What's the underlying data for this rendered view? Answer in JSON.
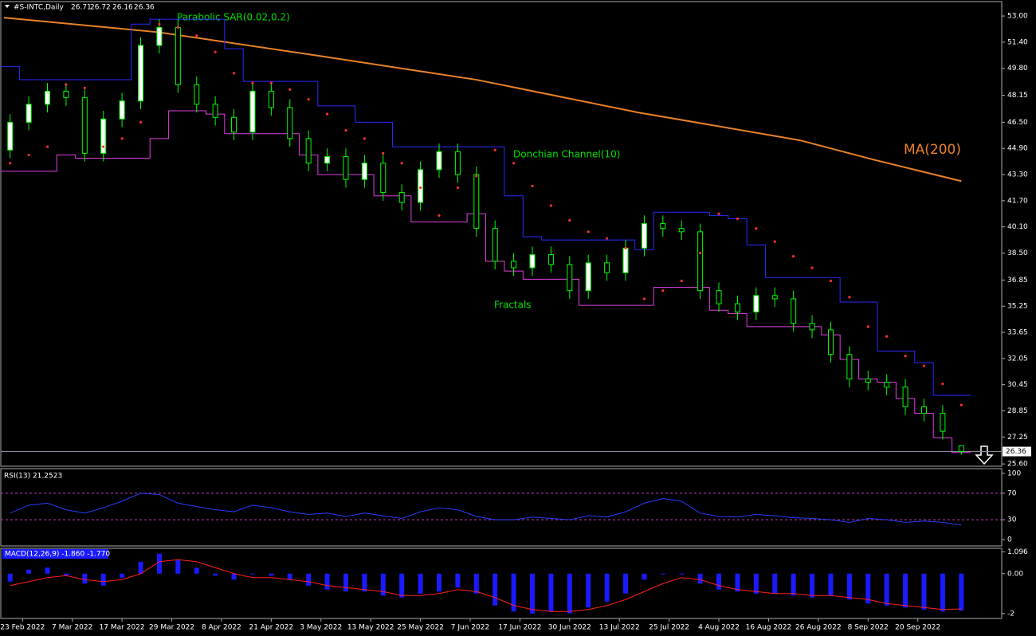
{
  "chart_data": {
    "type": "candlestick",
    "header": "#S-INTC,Daily",
    "header_ohlc": [
      26.71,
      26.72,
      26.16,
      26.36
    ],
    "last_price": 26.36,
    "annotations": [
      "Parabolic SAR(0.02,0.2)",
      "Donchian Channel(10)",
      "Fractals",
      "MA(200)"
    ],
    "x": [
      1,
      4,
      7,
      10,
      13,
      16,
      19,
      22,
      25,
      28,
      31,
      34,
      37,
      40,
      43,
      46,
      49,
      52,
      55,
      58,
      61,
      64,
      67,
      70,
      73,
      76,
      79,
      82,
      85,
      88,
      91,
      94,
      97,
      100,
      103,
      106,
      109,
      112,
      115,
      118,
      121,
      124,
      127,
      130,
      133,
      136,
      139,
      142,
      145,
      148,
      151,
      154
    ],
    "xlim": [
      -0.5,
      160.5
    ],
    "xticks": [
      {
        "value": 3,
        "label": "23 Feb 2022"
      },
      {
        "value": 11,
        "label": "7 Mar 2022"
      },
      {
        "value": 19,
        "label": "17 Mar 2022"
      },
      {
        "value": 27,
        "label": "29 Mar 2022"
      },
      {
        "value": 35,
        "label": "8 Apr 2022"
      },
      {
        "value": 43,
        "label": "21 Apr 2022"
      },
      {
        "value": 51,
        "label": "3 May 2022"
      },
      {
        "value": 59,
        "label": "13 May 2022"
      },
      {
        "value": 67,
        "label": "25 May 2022"
      },
      {
        "value": 75,
        "label": "7 Jun 2022"
      },
      {
        "value": 83,
        "label": "17 Jun 2022"
      },
      {
        "value": 91,
        "label": "30 Jun 2022"
      },
      {
        "value": 99,
        "label": "13 Jul 2022"
      },
      {
        "value": 107,
        "label": "25 Jul 2022"
      },
      {
        "value": 115,
        "label": "4 Aug 2022"
      },
      {
        "value": 123,
        "label": "16 Aug 2022"
      },
      {
        "value": 131,
        "label": "26 Aug 2022"
      },
      {
        "value": 139,
        "label": "8 Sep 2022"
      },
      {
        "value": 147,
        "label": "20 Sep 2022"
      }
    ],
    "ylim": [
      25.46,
      53.88
    ],
    "yticks": [
      {
        "value": 53,
        "label": "53.00"
      },
      {
        "value": 51.4,
        "label": "51.40"
      },
      {
        "value": 49.8,
        "label": "49.80"
      },
      {
        "value": 48.15,
        "label": "48.15"
      },
      {
        "value": 46.5,
        "label": "46.50"
      },
      {
        "value": 44.9,
        "label": "44.90"
      },
      {
        "value": 43.3,
        "label": "43.30"
      },
      {
        "value": 41.7,
        "label": "41.70"
      },
      {
        "value": 40.1,
        "label": "40.10"
      },
      {
        "value": 38.5,
        "label": "38.50"
      },
      {
        "value": 36.85,
        "label": "36.85"
      },
      {
        "value": 35.25,
        "label": "35.25"
      },
      {
        "value": 33.65,
        "label": "33.65"
      },
      {
        "value": 32.05,
        "label": "32.05"
      },
      {
        "value": 30.45,
        "label": "30.45"
      },
      {
        "value": 28.85,
        "label": "28.85"
      },
      {
        "value": 27.25,
        "label": "27.25"
      },
      {
        "value": 25.6,
        "label": "25.60"
      }
    ],
    "candle_color": "#00ff00",
    "up_fill": "#ffffff",
    "down_fill": "#000000",
    "open": [
      44.8,
      46.5,
      47.6,
      48.4,
      48.0,
      44.6,
      46.7,
      47.8,
      51.2,
      52.3,
      48.8,
      47.6,
      46.8,
      45.9,
      48.4,
      47.4,
      45.5,
      44.0,
      44.4,
      43.0,
      44.0,
      42.2,
      41.6,
      43.6,
      44.7,
      43.3,
      40.0,
      38.0,
      37.6,
      38.4,
      37.8,
      36.2,
      37.9,
      37.3,
      38.8,
      40.3,
      40.0,
      39.8,
      36.2,
      35.4,
      34.9,
      35.9,
      35.7,
      34.2,
      33.8,
      32.3,
      30.8,
      30.6,
      30.3,
      29.1,
      28.7,
      26.71
    ],
    "high": [
      47.0,
      48.1,
      48.9,
      48.9,
      48.5,
      47.2,
      48.3,
      51.7,
      52.8,
      52.8,
      49.3,
      48.1,
      47.3,
      48.9,
      48.9,
      47.9,
      46.0,
      44.9,
      44.9,
      44.5,
      44.5,
      42.7,
      44.1,
      45.2,
      45.2,
      43.8,
      40.5,
      38.5,
      38.9,
      38.9,
      38.3,
      38.4,
      38.4,
      39.3,
      40.8,
      40.8,
      40.5,
      40.3,
      36.7,
      35.9,
      36.4,
      36.4,
      36.2,
      34.7,
      34.3,
      32.8,
      31.3,
      31.1,
      30.8,
      29.6,
      29.2,
      26.72
    ],
    "low": [
      44.3,
      46.0,
      47.1,
      47.5,
      44.1,
      44.1,
      46.2,
      47.3,
      50.7,
      48.3,
      47.1,
      46.3,
      45.4,
      45.4,
      46.9,
      45.0,
      43.5,
      43.5,
      42.5,
      42.5,
      41.7,
      41.1,
      41.1,
      43.1,
      42.8,
      39.5,
      37.5,
      37.1,
      37.1,
      37.3,
      35.7,
      35.7,
      36.8,
      36.8,
      38.3,
      39.5,
      39.3,
      35.7,
      34.9,
      34.4,
      34.4,
      35.2,
      33.7,
      33.3,
      31.8,
      30.3,
      30.1,
      29.8,
      28.6,
      28.2,
      27.1,
      26.16
    ],
    "close": [
      46.5,
      47.6,
      48.4,
      48.0,
      44.6,
      46.7,
      47.8,
      51.2,
      52.3,
      48.8,
      47.6,
      46.8,
      45.9,
      48.4,
      47.4,
      45.5,
      44.0,
      44.4,
      43.0,
      44.0,
      42.2,
      41.6,
      43.6,
      44.7,
      43.3,
      40.0,
      38.0,
      37.6,
      38.4,
      37.8,
      36.2,
      37.9,
      37.3,
      38.8,
      40.3,
      40.0,
      39.8,
      36.2,
      35.4,
      34.9,
      35.9,
      35.7,
      34.2,
      33.8,
      32.3,
      30.8,
      30.6,
      30.3,
      29.1,
      28.7,
      27.6,
      26.36
    ],
    "ma": {
      "color": "#e8822a",
      "x": [
        0,
        25,
        50,
        76,
        102,
        128,
        140,
        154
      ],
      "values": [
        52.9,
        52.0,
        50.6,
        49.1,
        47.1,
        45.4,
        44.2,
        42.9
      ]
    },
    "donchian_upper": {
      "color": "#2a2aff",
      "values": [
        49.9,
        49.1,
        49.1,
        49.1,
        49.1,
        49.1,
        49.1,
        52.5,
        52.8,
        52.8,
        52.8,
        52.8,
        51.0,
        49.0,
        49.0,
        49.0,
        49.0,
        47.5,
        47.5,
        46.5,
        46.5,
        45.0,
        45.0,
        45.0,
        45.0,
        45.0,
        45.0,
        42.0,
        39.5,
        39.3,
        39.3,
        39.3,
        39.3,
        39.3,
        38.7,
        41.0,
        41.0,
        41.0,
        40.8,
        40.6,
        39.0,
        37.0,
        37.0,
        37.0,
        37.0,
        35.5,
        35.5,
        32.5,
        32.5,
        31.8,
        29.8,
        29.8
      ]
    },
    "donchian_lower": {
      "color": "#e040e0",
      "values": [
        43.5,
        43.5,
        43.5,
        44.5,
        44.3,
        44.3,
        44.3,
        44.3,
        45.5,
        47.2,
        47.2,
        47.0,
        45.8,
        45.8,
        45.8,
        45.8,
        44.5,
        43.3,
        43.3,
        43.3,
        42.0,
        42.0,
        40.4,
        40.4,
        40.4,
        40.9,
        38.0,
        37.4,
        36.9,
        36.9,
        36.9,
        35.3,
        35.3,
        35.3,
        35.3,
        36.4,
        36.4,
        36.4,
        35.0,
        34.8,
        34.0,
        34.0,
        34.0,
        34.0,
        33.5,
        32.0,
        30.8,
        30.6,
        29.6,
        28.7,
        27.2,
        26.3
      ]
    },
    "sar": {
      "color": "#ff3030",
      "values": [
        44.0,
        44.5,
        45.0,
        48.8,
        48.6,
        45.0,
        45.5,
        46.5,
        52.5,
        52.3,
        51.8,
        50.8,
        49.5,
        48.9,
        48.9,
        48.5,
        47.9,
        47.0,
        46.0,
        45.5,
        44.6,
        44.0,
        42.5,
        40.8,
        42.5,
        43.2,
        44.8,
        44.0,
        42.6,
        41.4,
        40.5,
        39.8,
        39.4,
        38.8,
        35.7,
        36.2,
        36.8,
        38.5,
        40.9,
        40.6,
        40.0,
        39.2,
        38.3,
        37.6,
        36.8,
        35.8,
        34.0,
        33.4,
        32.2,
        31.6,
        30.5,
        29.2
      ]
    },
    "rsi": {
      "label": "RSI(13) 21.2523",
      "color": "#2a3aff",
      "ylim": [
        -9.6,
        107.2
      ],
      "yticks": [
        100,
        70,
        30,
        0
      ],
      "levels": [
        70,
        30
      ],
      "values": [
        40,
        52,
        55,
        45,
        40,
        48,
        58,
        70,
        68,
        55,
        50,
        45,
        42,
        52,
        48,
        42,
        38,
        40,
        35,
        40,
        36,
        32,
        42,
        48,
        45,
        35,
        30,
        30,
        34,
        32,
        30,
        36,
        34,
        42,
        55,
        62,
        58,
        40,
        35,
        34,
        38,
        36,
        33,
        32,
        30,
        26,
        32,
        30,
        26,
        28,
        26,
        22
      ]
    },
    "macd": {
      "label": "MACD(12,26,9) -1.860 -1.770",
      "ylim": [
        -2.25,
        1.27
      ],
      "yticks": [
        1.096,
        {
          "value": 0,
          "label": "0.00"
        },
        -2
      ],
      "histogram": {
        "color": "#1a1aff",
        "values": [
          -0.4,
          0.2,
          0.3,
          -0.1,
          -0.5,
          -0.6,
          -0.2,
          0.6,
          1.0,
          0.7,
          0.3,
          -0.1,
          -0.3,
          0.0,
          -0.1,
          -0.3,
          -0.6,
          -0.8,
          -0.9,
          -0.9,
          -1.1,
          -1.2,
          -1.0,
          -0.9,
          -0.7,
          -1.0,
          -1.6,
          -1.9,
          -2.0,
          -1.9,
          -2.0,
          -1.7,
          -1.4,
          -1.0,
          -0.3,
          0.0,
          0.0,
          -0.5,
          -0.8,
          -0.9,
          -1.0,
          -1.0,
          -1.1,
          -1.2,
          -1.1,
          -1.3,
          -1.5,
          -1.6,
          -1.7,
          -1.8,
          -1.9,
          -1.86
        ]
      },
      "signal": {
        "color": "#ff2020",
        "values": [
          -0.6,
          -0.4,
          -0.2,
          -0.1,
          -0.3,
          -0.4,
          -0.3,
          0.0,
          0.6,
          0.7,
          0.6,
          0.3,
          0.0,
          -0.2,
          -0.2,
          -0.3,
          -0.4,
          -0.6,
          -0.7,
          -0.8,
          -0.9,
          -1.1,
          -1.1,
          -1.0,
          -0.8,
          -0.9,
          -1.2,
          -1.6,
          -1.8,
          -1.9,
          -1.9,
          -1.8,
          -1.6,
          -1.3,
          -0.9,
          -0.5,
          -0.2,
          -0.3,
          -0.6,
          -0.8,
          -0.9,
          -1.0,
          -1.0,
          -1.1,
          -1.1,
          -1.2,
          -1.3,
          -1.5,
          -1.6,
          -1.7,
          -1.8,
          -1.77
        ]
      }
    }
  }
}
